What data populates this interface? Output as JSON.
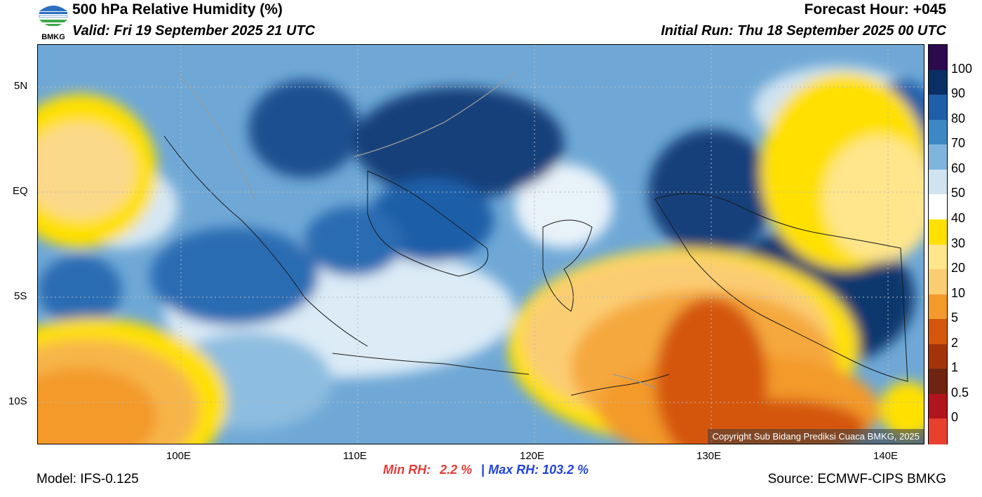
{
  "header": {
    "title": "500 hPa Relative Humidity (%)",
    "valid": "Valid: Fri 19 September 2025 21 UTC",
    "forecast_hour": "Forecast Hour: +045",
    "initial_run": "Initial Run: Thu 18 September 2025 00 UTC"
  },
  "logo": {
    "text": "BMKG",
    "icon": "bmkg-logo-icon"
  },
  "map": {
    "lat_labels": [
      "5N",
      "EQ",
      "5S",
      "10S"
    ],
    "lon_labels": [
      "100E",
      "110E",
      "120E",
      "130E",
      "140E"
    ],
    "copyright": "Copyright Sub Bidang Prediksi Cuaca BMKG, 2025"
  },
  "colorbar": {
    "labels": [
      "100",
      "90",
      "80",
      "70",
      "60",
      "50",
      "40",
      "30",
      "20",
      "10",
      "5",
      "2",
      "1",
      "0.5",
      "0"
    ],
    "colors": [
      "#2d0a4e",
      "#0a2f64",
      "#1f5ea8",
      "#3d87c4",
      "#7fb5dd",
      "#cfe3f1",
      "#ffffff",
      "#ffe000",
      "#ffe58c",
      "#fbcd73",
      "#f39a2b",
      "#d4570d",
      "#a3340a",
      "#6e2410",
      "#b0141c",
      "#e8402e"
    ]
  },
  "stats": {
    "min_label": "Min RH:",
    "min_value": "2.2 %",
    "separator": "|",
    "max_label": "Max RH:",
    "max_value": "103.2 %",
    "min_color": "#e53b3b",
    "max_color": "#2244dd"
  },
  "footer": {
    "model": "Model: IFS-0.125",
    "source": "Source: ECMWF-CIPS BMKG"
  }
}
